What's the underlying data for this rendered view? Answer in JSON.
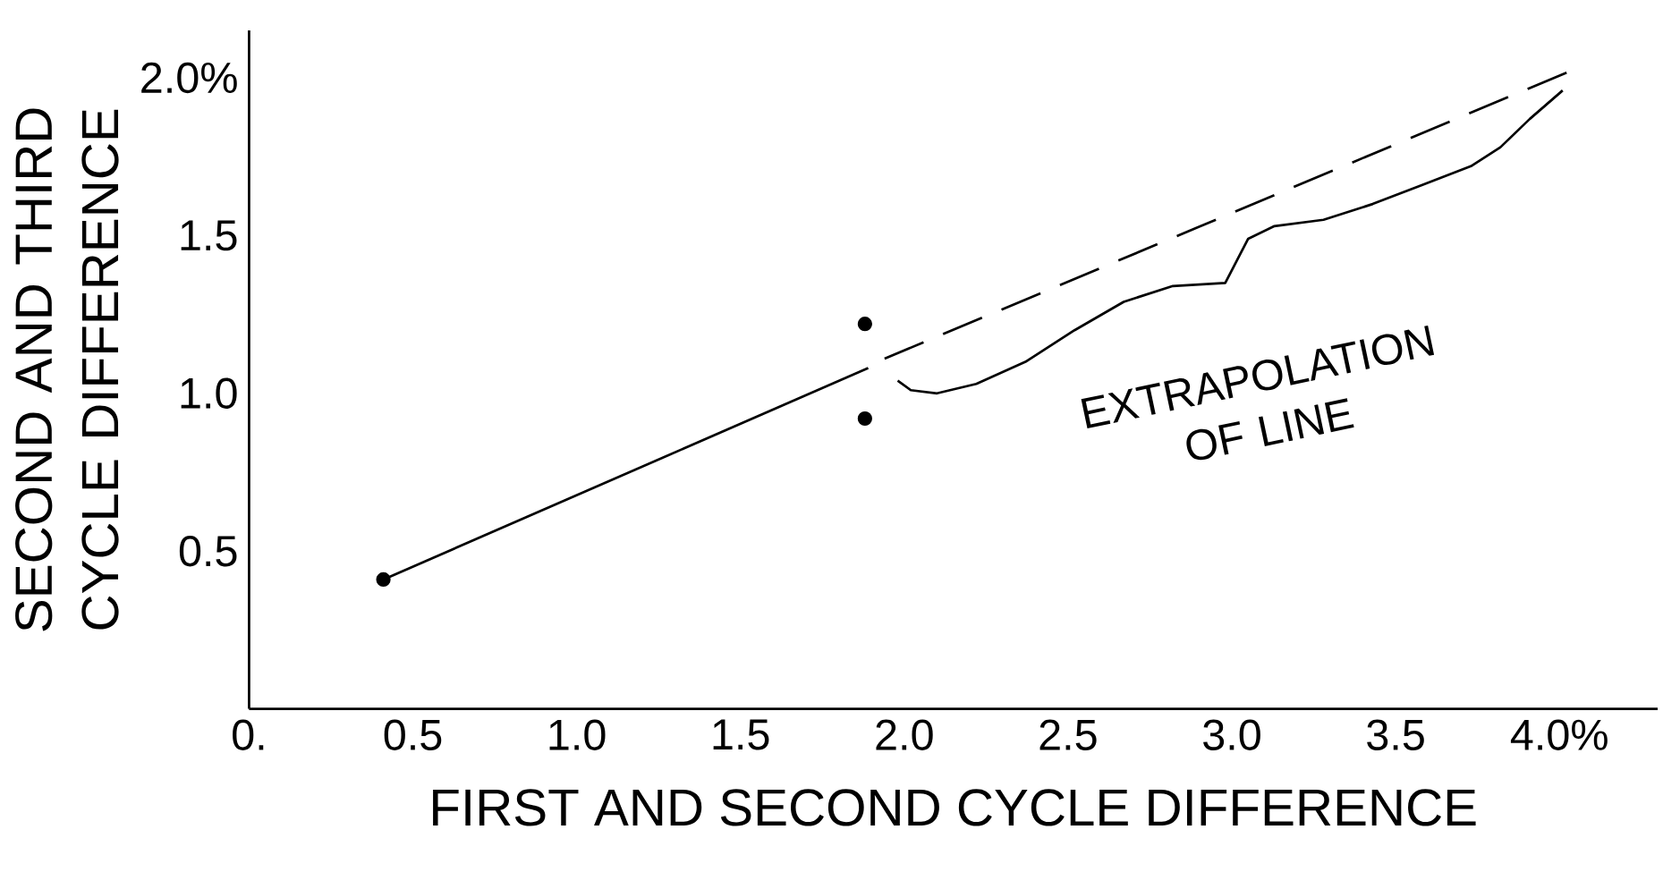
{
  "chart_data": {
    "type": "line",
    "xlabel": "FIRST AND SECOND CYCLE DIFFERENCE",
    "ylabel": "SECOND AND THIRD CYCLE DIFFERENCE",
    "xlim": [
      0,
      4.3
    ],
    "ylim": [
      0,
      2.15
    ],
    "xticks": [
      {
        "value": 0,
        "label": "0."
      },
      0.5,
      {
        "value": 1,
        "label": "1.0"
      },
      1.5,
      {
        "value": 2,
        "label": "2.0"
      },
      2.5,
      {
        "value": 3,
        "label": "3.0"
      },
      3.5,
      {
        "value": 4,
        "label": "4.0%"
      }
    ],
    "yticks": [
      0.5,
      {
        "value": 1,
        "label": "1.0"
      },
      1.5,
      {
        "value": 2,
        "label": "2.0%"
      }
    ],
    "grid": false,
    "annotations": [
      "EXTRAPOLATION OF LINE"
    ],
    "series": [
      {
        "line_style": "solid",
        "marker": "none",
        "color": "#000000",
        "x": [
          0.41,
          1.89
        ],
        "values": [
          0.41,
          1.08
        ]
      },
      {
        "line_style": "dashed",
        "marker": "none",
        "color": "#000000",
        "x": [
          1.94,
          4.03
        ],
        "values": [
          1.11,
          2.02
        ]
      },
      {
        "line_style": "solid",
        "marker": "none",
        "color": "#000000",
        "x": [
          1.98,
          2.02,
          2.1,
          2.22,
          2.37,
          2.52,
          2.67,
          2.82,
          2.98,
          3.05,
          3.13,
          3.28,
          3.43,
          3.58,
          3.73,
          3.82,
          3.91,
          4.01
        ],
        "values": [
          1.04,
          1.01,
          1.0,
          1.03,
          1.1,
          1.2,
          1.29,
          1.34,
          1.35,
          1.49,
          1.53,
          1.55,
          1.6,
          1.66,
          1.72,
          1.78,
          1.87,
          1.96
        ]
      },
      {
        "type": "scatter",
        "marker": "circle",
        "color": "#000000",
        "x": [
          0.41,
          1.88,
          1.88
        ],
        "values": [
          0.41,
          1.22,
          0.92
        ]
      }
    ]
  }
}
